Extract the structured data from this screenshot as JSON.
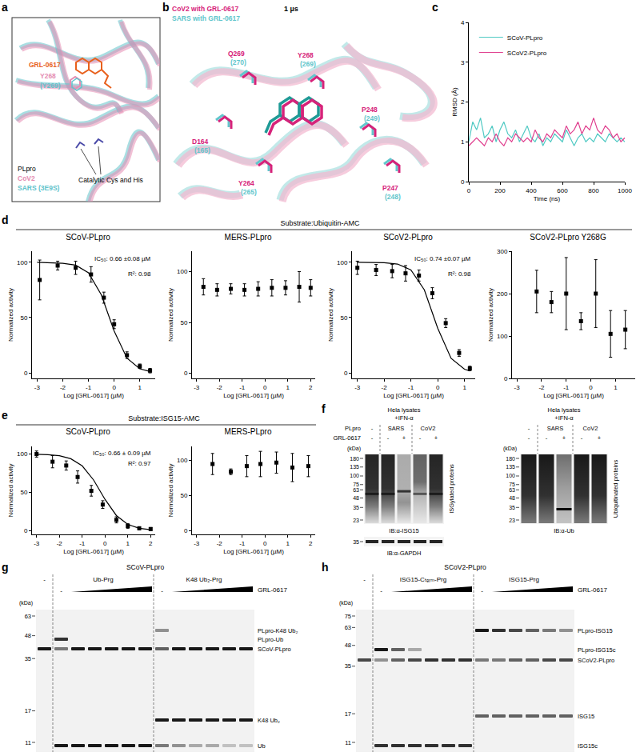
{
  "panel_labels": [
    "a",
    "b",
    "c",
    "d",
    "e",
    "f",
    "g",
    "h"
  ],
  "structure_a": {
    "ligand": "GRL-0617",
    "residue_cov2": "Y268",
    "residue_sars": "(Y269)",
    "legend_title": "PLpro",
    "legend_cov2": "CoV2",
    "legend_sars": "SARS (3E9S)",
    "catalytic": "Catalytic Cys and His",
    "color_cov2": "#e58db2",
    "color_sars": "#62c3cb",
    "color_ligand": "#e8601c"
  },
  "structure_b": {
    "title_cov2": "CoV2 with GRL-0617",
    "title_sars": "SARS with GRL-0617",
    "time": "1 µs",
    "color_cov2": "#d6237a",
    "color_sars": "#62c6cc",
    "residues": [
      [
        "Q269",
        "(270)"
      ],
      [
        "Y268",
        "(269)"
      ],
      [
        "P248",
        "(249)"
      ],
      [
        "D164",
        "(165)"
      ],
      [
        "Y264",
        "(265)"
      ],
      [
        "P247",
        "(248)"
      ]
    ]
  },
  "sections": [
    "Substrate:Ubiquitin-AMC",
    "Substrate:ISG15-AMC"
  ],
  "chart_data": [
    {
      "type": "line",
      "x_label": "Time (ns)",
      "y_label": "RMSD (Å)",
      "legend": "top left",
      "grid": false,
      "x": [
        0,
        25,
        50,
        75,
        100,
        125,
        150,
        175,
        200,
        225,
        250,
        275,
        300,
        325,
        350,
        375,
        400,
        425,
        450,
        475,
        500,
        525,
        550,
        575,
        600,
        625,
        650,
        675,
        700,
        725,
        750,
        775,
        800,
        825,
        850,
        875,
        900,
        925,
        950,
        975,
        1000
      ],
      "xlim": [
        0,
        1000
      ],
      "xticks": [
        0,
        200,
        400,
        600,
        800,
        1000
      ],
      "ylim": [
        0,
        4
      ],
      "yticks": [
        0,
        1,
        2,
        3,
        4
      ],
      "series": [
        {
          "name": "SCoV-PLpro",
          "color": "#4fc9c3",
          "values": [
            1.0,
            1.5,
            1.3,
            1.6,
            1.1,
            1.2,
            1.4,
            1.0,
            1.3,
            1.5,
            1.2,
            1.1,
            1.3,
            1.0,
            1.2,
            1.4,
            1.1,
            1.0,
            1.2,
            0.9,
            1.1,
            1.0,
            1.2,
            1.1,
            1.0,
            1.3,
            1.1,
            0.9,
            1.1,
            1.2,
            1.0,
            1.1,
            1.0,
            1.2,
            1.1,
            1.0,
            1.2,
            1.1,
            1.0,
            1.1,
            1.0
          ]
        },
        {
          "name": "SCoV2-PLpro",
          "color": "#e0408f",
          "values": [
            0.9,
            1.0,
            1.1,
            1.0,
            0.9,
            1.1,
            1.0,
            1.2,
            1.0,
            0.9,
            1.1,
            1.0,
            1.2,
            1.1,
            1.0,
            1.1,
            1.0,
            1.3,
            1.1,
            1.0,
            1.2,
            1.1,
            1.3,
            1.2,
            1.1,
            1.4,
            1.2,
            1.3,
            1.5,
            1.2,
            1.4,
            1.3,
            1.6,
            1.3,
            1.2,
            1.4,
            1.3,
            1.1,
            1.2,
            1.0,
            1.1
          ]
        }
      ]
    },
    {
      "type": "scatter",
      "title": "SCoV-PLpro",
      "x_label": "Log [GRL-0617] (µM)",
      "y_label": "Normalized activity",
      "grid": false,
      "xlim": [
        -3.2,
        1.6
      ],
      "xticks": [
        -3,
        -2,
        -1,
        0,
        1
      ],
      "ylim": [
        -5,
        110
      ],
      "yticks": [
        0,
        50,
        100
      ],
      "annotations": [
        "IC₅₀: 0.66 ±0.08 µM",
        "R²: 0.98"
      ],
      "series": [
        {
          "type": "scatter",
          "marker": "square",
          "color": "#000000",
          "x": [
            -2.9,
            -2.2,
            -1.5,
            -0.9,
            -0.4,
            0.0,
            0.5,
            1.0,
            1.4
          ],
          "values": [
            84,
            97,
            95,
            89,
            68,
            44,
            16,
            6,
            2
          ],
          "error": [
            18,
            4,
            6,
            7,
            5,
            4,
            3,
            2,
            2
          ]
        },
        {
          "type": "line",
          "color": "#000000",
          "x": [
            -3,
            -2.5,
            -2,
            -1.5,
            -1,
            -0.5,
            0,
            0.5,
            1,
            1.4
          ],
          "values": [
            100,
            99.7,
            99.1,
            97.4,
            90.5,
            70.6,
            37.8,
            13.3,
            3.7,
            1.2
          ]
        }
      ]
    },
    {
      "type": "scatter",
      "title": "MERS-PLpro",
      "x_label": "Log [GRL-0617] (µM)",
      "y_label": "Normalized activity",
      "grid": false,
      "xlim": [
        -3.2,
        2.2
      ],
      "xticks": [
        -3,
        -2,
        -1,
        0,
        1,
        2
      ],
      "ylim": [
        -5,
        120
      ],
      "yticks": [
        0,
        50,
        100
      ],
      "series": [
        {
          "type": "scatter",
          "marker": "square",
          "color": "#000000",
          "x": [
            -2.7,
            -2.1,
            -1.5,
            -0.9,
            -0.3,
            0.3,
            0.9,
            1.5,
            2.0
          ],
          "values": [
            85,
            82,
            83,
            82,
            83,
            84,
            84,
            85,
            84
          ],
          "error": [
            8,
            6,
            5,
            6,
            7,
            8,
            7,
            15,
            8
          ]
        }
      ]
    },
    {
      "type": "scatter",
      "title": "SCoV2-PLpro",
      "x_label": "Log [GRL-0617] (µM)",
      "y_label": "Normalized activity",
      "grid": false,
      "xlim": [
        -3.2,
        1.4
      ],
      "xticks": [
        -3,
        -2,
        -1,
        0,
        1
      ],
      "ylim": [
        -5,
        110
      ],
      "yticks": [
        0,
        50,
        100
      ],
      "annotations": [
        "IC₅₀: 0.74 ±0.07 µM",
        "R²: 0.98"
      ],
      "series": [
        {
          "type": "scatter",
          "marker": "square",
          "color": "#000000",
          "x": [
            -3.0,
            -2.3,
            -1.7,
            -1.2,
            -0.7,
            -0.2,
            0.3,
            0.8,
            1.2
          ],
          "values": [
            95,
            93,
            92,
            90,
            88,
            72,
            45,
            18,
            4
          ],
          "error": [
            6,
            5,
            6,
            7,
            5,
            5,
            4,
            3,
            2
          ]
        },
        {
          "type": "line",
          "color": "#000000",
          "x": [
            -3,
            -2.5,
            -2,
            -1.5,
            -1,
            -0.5,
            0,
            0.5,
            1,
            1.2
          ],
          "values": [
            100,
            99.9,
            99.6,
            98.4,
            93.1,
            75.1,
            40.4,
            13.1,
            3.3,
            1.8
          ]
        }
      ]
    },
    {
      "type": "scatter",
      "title": "SCoV2-PLpro Y268G",
      "x_label": "Log [GRL-0617] (µM)",
      "y_label": "Normalized activity",
      "grid": false,
      "xlim": [
        -3.2,
        1.8
      ],
      "xticks": [
        -3,
        -2,
        -1,
        0,
        1
      ],
      "ylim": [
        0,
        300
      ],
      "yticks": [
        0,
        100,
        200,
        300
      ],
      "series": [
        {
          "type": "scatter",
          "marker": "square",
          "color": "#000000",
          "x": [
            -2.2,
            -1.6,
            -1.0,
            -0.4,
            0.2,
            0.8,
            1.4
          ],
          "values": [
            205,
            180,
            200,
            135,
            200,
            105,
            115
          ],
          "error": [
            50,
            25,
            85,
            20,
            80,
            55,
            45
          ]
        }
      ]
    },
    {
      "type": "scatter",
      "title": "SCoV-PLpro",
      "x_label": "Log [GRL-0617] (µM)",
      "y_label": "Normalized activity",
      "grid": false,
      "xlim": [
        -3.2,
        2.2
      ],
      "xticks": [
        -3,
        -2,
        -1,
        0,
        1,
        2
      ],
      "ylim": [
        -5,
        110
      ],
      "yticks": [
        0,
        50,
        100
      ],
      "annotations": [
        "IC₅₀: 0.66 ± 0.09 µM",
        "R²: 0.97"
      ],
      "series": [
        {
          "type": "scatter",
          "marker": "square",
          "color": "#000000",
          "x": [
            -3.0,
            -2.3,
            -1.7,
            -1.2,
            -0.6,
            -0.1,
            0.5,
            1.0,
            1.5,
            2.0
          ],
          "values": [
            100,
            90,
            85,
            70,
            52,
            34,
            14,
            6,
            3,
            2
          ],
          "error": [
            4,
            8,
            6,
            8,
            7,
            5,
            4,
            3,
            2,
            2
          ]
        },
        {
          "type": "line",
          "color": "#000000",
          "x": [
            -3,
            -2.5,
            -2,
            -1.5,
            -1,
            -0.5,
            0,
            0.5,
            1,
            1.5,
            2
          ],
          "values": [
            99.7,
            99.2,
            97.8,
            93.9,
            84.6,
            66.1,
            40.8,
            19.6,
            8.0,
            3.0,
            1.1
          ]
        }
      ]
    },
    {
      "type": "scatter",
      "title": "MERS-PLpro",
      "x_label": "Log [GRL-0617] (µM)",
      "y_label": "Normalized activity",
      "grid": false,
      "xlim": [
        -3.2,
        2.2
      ],
      "xticks": [
        -3,
        -2,
        -1,
        0,
        1,
        2
      ],
      "ylim": [
        -5,
        120
      ],
      "yticks": [
        0,
        50,
        100
      ],
      "series": [
        {
          "type": "scatter",
          "marker": "square",
          "color": "#000000",
          "x": [
            -2.3,
            -1.5,
            -0.8,
            -0.2,
            0.5,
            1.2,
            1.9
          ],
          "values": [
            95,
            84,
            92,
            95,
            97,
            90,
            92
          ],
          "error": [
            15,
            4,
            15,
            18,
            15,
            20,
            15
          ]
        }
      ]
    }
  ],
  "blot_f": {
    "left": {
      "sample": "Hela lysates",
      "treatment": "+IFN-α",
      "row_labels": [
        "PLpro",
        "GRL-0617"
      ],
      "plpro_groups": [
        {
          "label": "-",
          "lanes": 1
        },
        {
          "label": "SARS",
          "lanes": 2
        },
        {
          "label": "CoV2",
          "lanes": 2
        }
      ],
      "grl": [
        "-",
        "-",
        "+",
        "-",
        "+"
      ],
      "kda_label": "(kDa)",
      "kda": [
        180,
        135,
        100,
        75,
        63,
        48,
        35,
        23
      ],
      "side_label": "ISGylated proteins",
      "ib": "IB:α-ISG15",
      "gapdh_kda": [
        35
      ],
      "gapdh_ib": "IB:α-GAPDH"
    },
    "right": {
      "sample": "Hela lysates",
      "treatment": "+IFN-α",
      "plpro_groups": [
        {
          "label": "-",
          "lanes": 1
        },
        {
          "label": "SARS",
          "lanes": 2
        },
        {
          "label": "CoV2",
          "lanes": 2
        }
      ],
      "grl": [
        "-",
        "-",
        "+",
        "-",
        "+"
      ],
      "kda_label": "(kDa)",
      "kda": [
        180,
        135,
        100,
        75,
        63,
        48,
        35,
        23
      ],
      "side_label": "Ubiquitinated proteins",
      "ib": "IB:α-Ub"
    }
  },
  "gel_g": {
    "title": "SCoV-PLpro",
    "control": "-",
    "groups": [
      "Ub-Prg",
      "K48 Ub₂-Prg"
    ],
    "inhibitor": "GRL-0617",
    "kda_label": "(kDa)",
    "kda": [
      63,
      48,
      35,
      17,
      11
    ],
    "bands": [
      "PLpro-K48 Ub₂",
      "PLpro-Ub",
      "SCoV-PLpro",
      "K48 Ub₂",
      "Ub"
    ]
  },
  "gel_h": {
    "title": "SCoV2-PLpro",
    "control": "-",
    "groups": [
      "ISG15-Cₜₑᵣₘ-Prg",
      "ISG15-Prg"
    ],
    "inhibitor": "GRL-0617",
    "kda_label": "(kDa)",
    "kda": [
      75,
      63,
      48,
      35,
      17,
      11
    ],
    "bands": [
      "PLpro-ISG15",
      "PLpro-ISG15c",
      "SCoV2-PLpro",
      "ISG15",
      "ISG15c"
    ]
  }
}
